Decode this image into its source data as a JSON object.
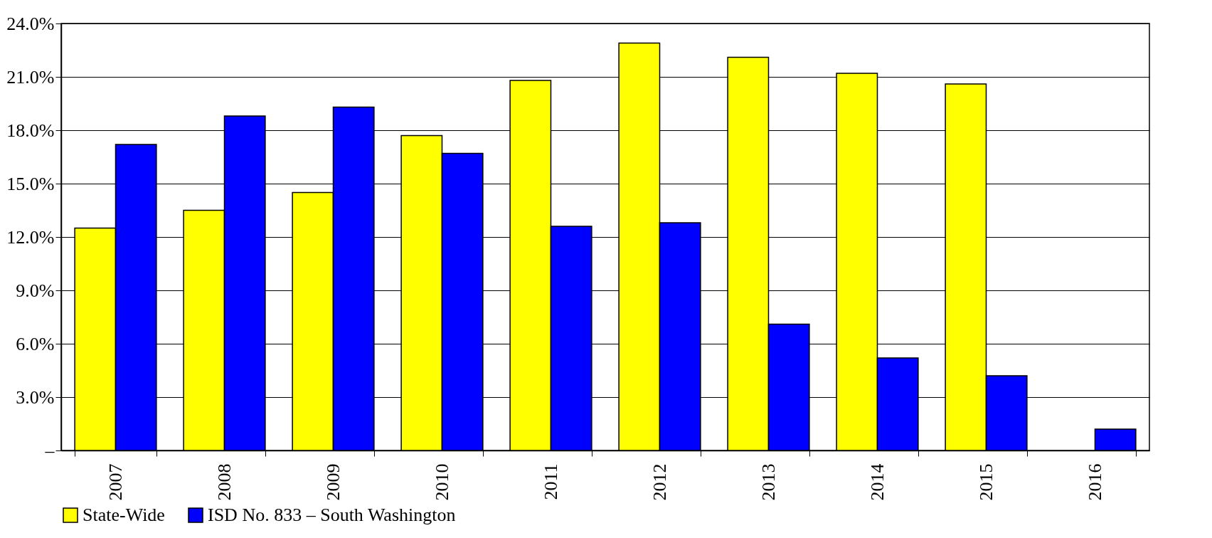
{
  "chart_data": {
    "type": "bar",
    "categories": [
      "2007",
      "2008",
      "2009",
      "2010",
      "2011",
      "2012",
      "2013",
      "2014",
      "2015",
      "2016"
    ],
    "series": [
      {
        "name": "State-Wide",
        "color": "#ffff00",
        "values": [
          12.5,
          13.5,
          14.5,
          17.7,
          20.8,
          22.9,
          22.1,
          21.2,
          20.6,
          null
        ]
      },
      {
        "name": "ISD No. 833 – South Washington",
        "color": "#0000ff",
        "values": [
          17.2,
          18.8,
          19.3,
          16.7,
          12.6,
          12.8,
          7.1,
          5.2,
          4.2,
          1.2
        ]
      }
    ],
    "ylim": [
      0,
      24
    ],
    "yticks": [
      {
        "value": 0,
        "label": "–"
      },
      {
        "value": 3,
        "label": "3.0%"
      },
      {
        "value": 6,
        "label": "6.0%"
      },
      {
        "value": 9,
        "label": "9.0%"
      },
      {
        "value": 12,
        "label": "12.0%"
      },
      {
        "value": 15,
        "label": "15.0%"
      },
      {
        "value": 18,
        "label": "18.0%"
      },
      {
        "value": 21,
        "label": "21.0%"
      },
      {
        "value": 24,
        "label": "24.0%"
      }
    ],
    "grid": "y",
    "legend": "bottom"
  }
}
